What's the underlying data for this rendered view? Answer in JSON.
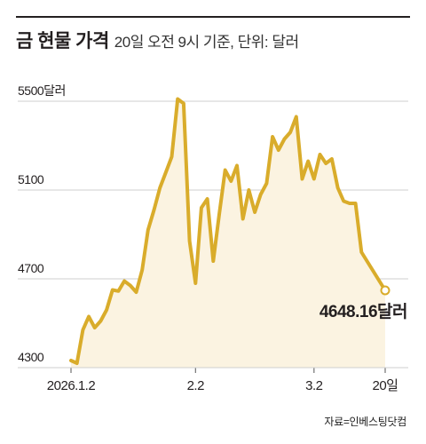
{
  "header": {
    "title": "금 현물 가격",
    "subtitle": "20일 오전 9시 기준, 단위: 달러"
  },
  "source": "자료=인베스팅닷컴",
  "colors": {
    "line": "#d9ac2b",
    "fill": "#fbf3e1",
    "gridline": "#cfcfcf",
    "text": "#231f20"
  },
  "chart_data": {
    "type": "area",
    "title": "금 현물 가격",
    "unit": "달러",
    "ylim": [
      4300,
      5500
    ],
    "y_ticks": [
      {
        "value": 5500,
        "label": "5500달러"
      },
      {
        "value": 5100,
        "label": "5100"
      },
      {
        "value": 4700,
        "label": "4700"
      },
      {
        "value": 4300,
        "label": "4300"
      }
    ],
    "x_ticks": [
      {
        "index": 0,
        "label": "2026.1.2"
      },
      {
        "index": 21,
        "label": "2.2"
      },
      {
        "index": 41,
        "label": "3.2"
      },
      {
        "index": 53,
        "label": "20일"
      }
    ],
    "grid": "horizontal",
    "series": [
      {
        "values": [
          4332,
          4320,
          4470,
          4530,
          4480,
          4510,
          4560,
          4650,
          4645,
          4690,
          4670,
          4640,
          4740,
          4920,
          5010,
          5110,
          5180,
          5250,
          5510,
          5490,
          4870,
          4680,
          5020,
          5060,
          4780,
          4990,
          5190,
          5140,
          5210,
          4970,
          5100,
          5000,
          5080,
          5130,
          5340,
          5280,
          5330,
          5360,
          5430,
          5150,
          5230,
          5150,
          5260,
          5220,
          5240,
          5110,
          5050,
          5040,
          5040,
          4820,
          4648.16
        ],
        "x_index": [
          0,
          1,
          2,
          3,
          4,
          5,
          6,
          7,
          8,
          9,
          10,
          11,
          12,
          13,
          14,
          15,
          16,
          17,
          18,
          19,
          20,
          21,
          22,
          23,
          24,
          25,
          26,
          27,
          28,
          29,
          30,
          31,
          32,
          33,
          34,
          35,
          36,
          37,
          38,
          39,
          40,
          41,
          42,
          43,
          44,
          45,
          46,
          47,
          48,
          49,
          53
        ]
      }
    ],
    "annotation": {
      "value": 4648.16,
      "label": "4648.16달러"
    }
  }
}
